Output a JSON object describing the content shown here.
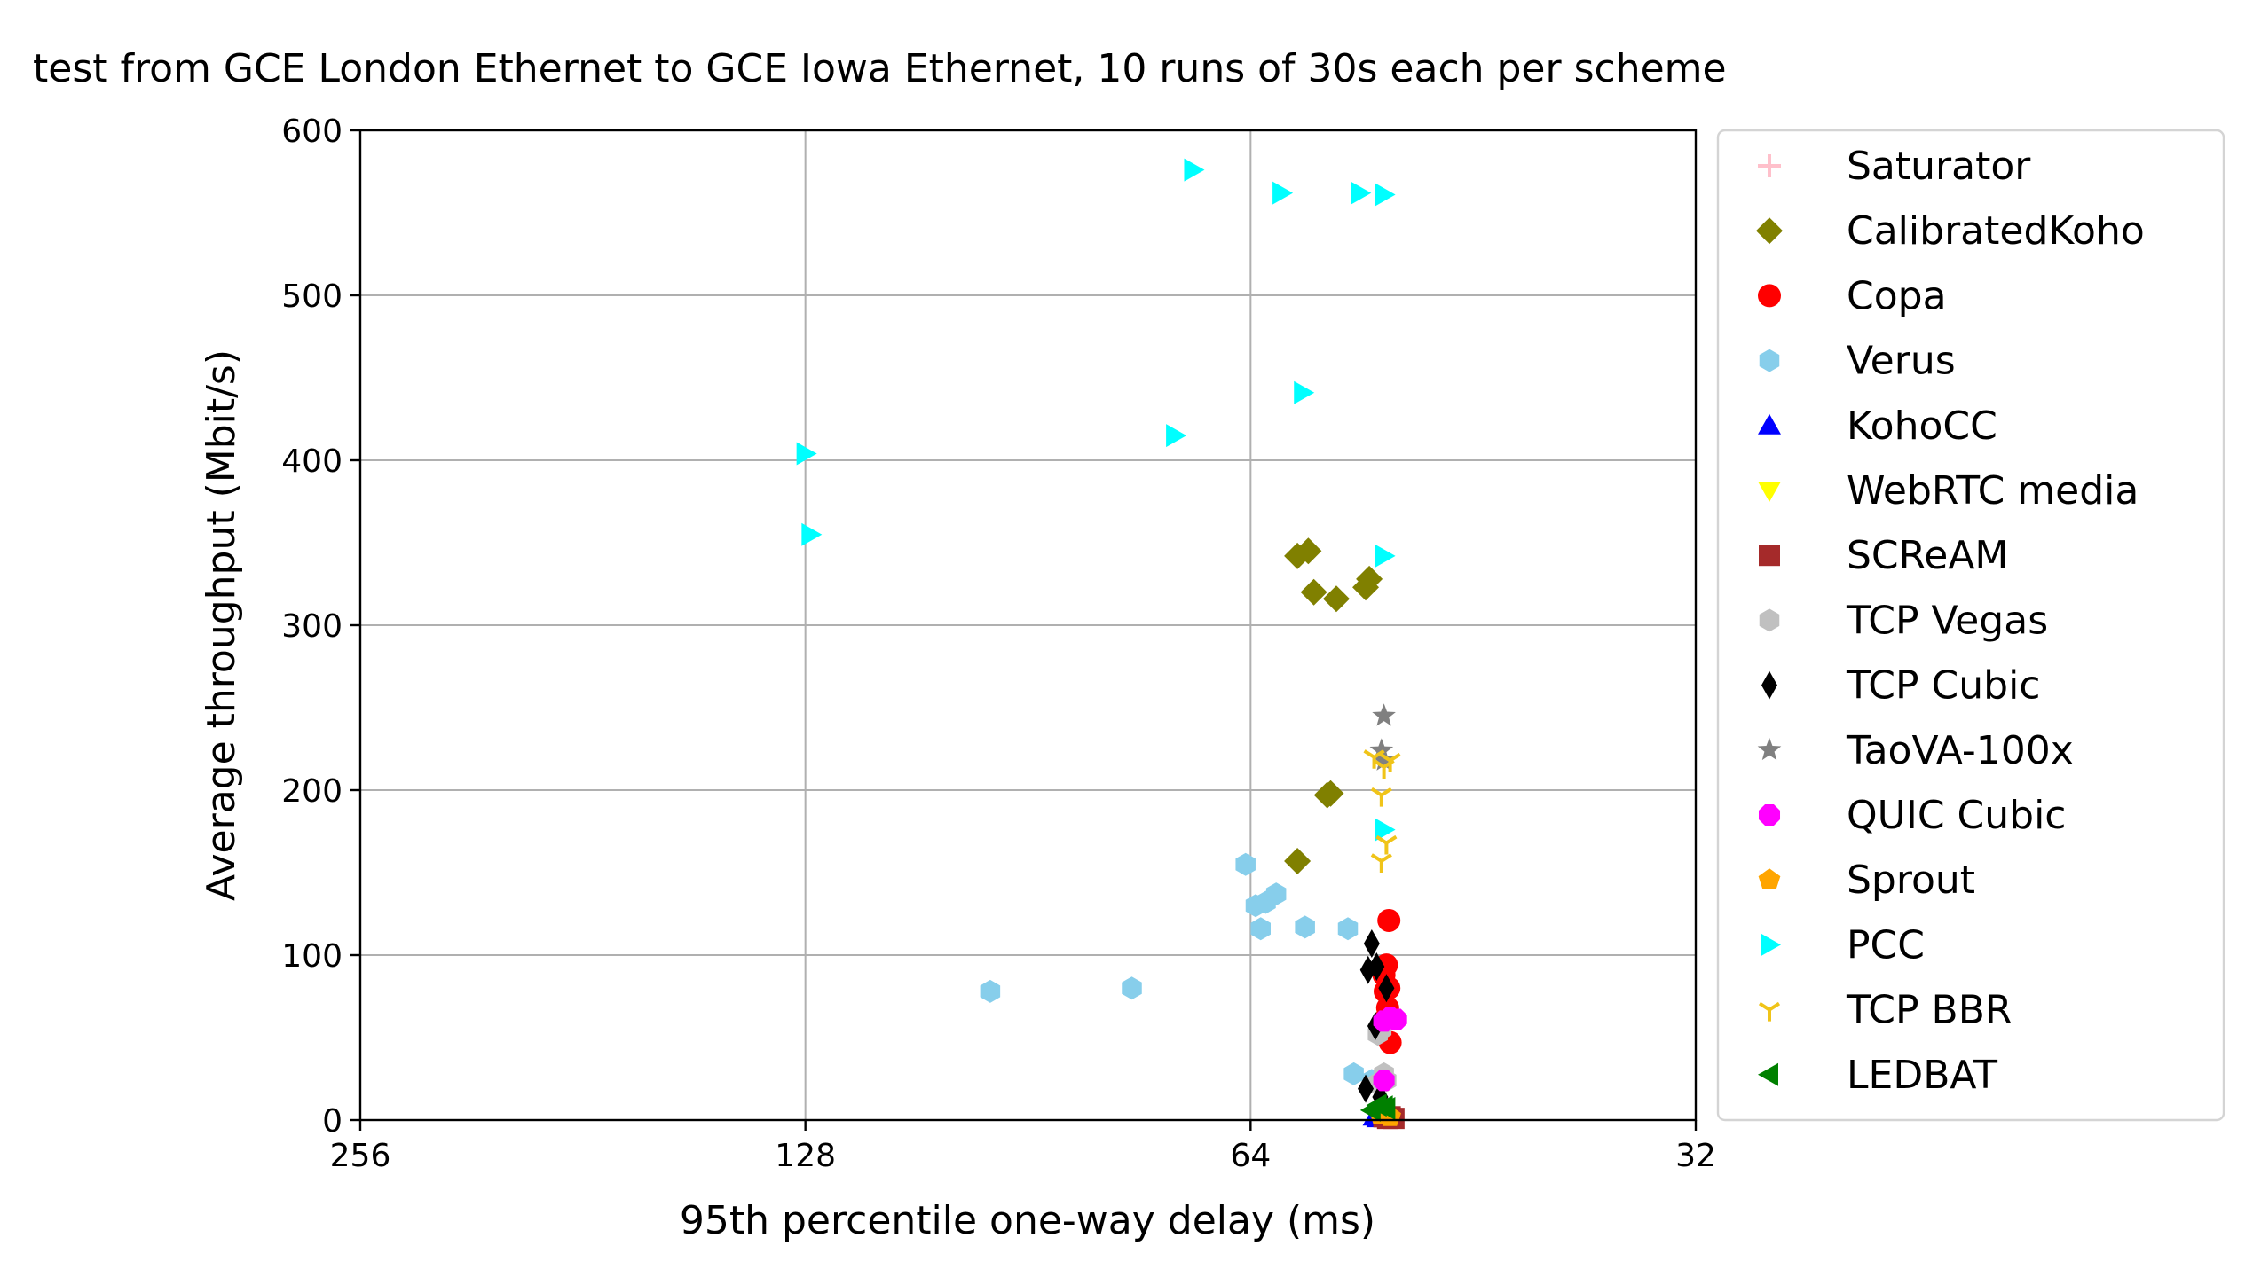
{
  "chart_data": {
    "type": "scatter",
    "title": "test from GCE London Ethernet to GCE Iowa Ethernet, 10 runs of 30s each per scheme",
    "xlabel": "95th percentile one-way delay (ms)",
    "ylabel": "Average throughput (Mbit/s)",
    "xscale": "log2",
    "xaxis_inverted": true,
    "xlim": [
      256,
      32
    ],
    "ylim": [
      0,
      600
    ],
    "xticks": [
      256,
      128,
      64,
      32
    ],
    "xtick_labels": [
      "256",
      "128",
      "64",
      "32"
    ],
    "yticks": [
      0,
      100,
      200,
      300,
      400,
      500,
      600
    ],
    "ytick_labels": [
      "0",
      "100",
      "200",
      "300",
      "400",
      "500",
      "600"
    ],
    "grid": true,
    "legend_position": "outside-right",
    "series": [
      {
        "name": "Saturator",
        "marker": "plus",
        "color": "#ffc0cb",
        "points": []
      },
      {
        "name": "CalibratedKoho",
        "marker": "diamond",
        "color": "#808000",
        "points": [
          [
            59.5,
            342
          ],
          [
            58.5,
            345
          ],
          [
            58,
            320
          ],
          [
            56,
            316
          ],
          [
            53.5,
            323
          ],
          [
            53.2,
            328
          ],
          [
            56.5,
            198
          ],
          [
            56.8,
            197
          ],
          [
            59.5,
            157
          ]
        ]
      },
      {
        "name": "Copa",
        "marker": "circle",
        "color": "#ff0000",
        "points": [
          [
            51.6,
            121
          ],
          [
            51.8,
            94
          ],
          [
            52,
            88
          ],
          [
            51.9,
            78
          ],
          [
            51.6,
            80
          ],
          [
            51.7,
            68
          ],
          [
            51.8,
            62
          ],
          [
            51.5,
            47
          ]
        ]
      },
      {
        "name": "Verus",
        "marker": "hexagon",
        "color": "#87ceeb",
        "points": [
          [
            64.5,
            155
          ],
          [
            63.5,
            130
          ],
          [
            62.5,
            132
          ],
          [
            63,
            116
          ],
          [
            61.5,
            137
          ],
          [
            58.8,
            117
          ],
          [
            55,
            116
          ],
          [
            96,
            78
          ],
          [
            77,
            80
          ],
          [
            54.5,
            28
          ],
          [
            53,
            24
          ]
        ]
      },
      {
        "name": "KohoCC",
        "marker": "triangle-up",
        "color": "#0000ff",
        "points": [
          [
            52.8,
            2
          ],
          [
            52.5,
            1
          ]
        ]
      },
      {
        "name": "WebRTC media",
        "marker": "triangle-down",
        "color": "#ffff00",
        "points": []
      },
      {
        "name": "SCReAM",
        "marker": "square",
        "color": "#a52a2a",
        "points": [
          [
            51.5,
            2
          ],
          [
            51.2,
            1
          ],
          [
            52,
            2
          ],
          [
            51.7,
            1
          ]
        ]
      },
      {
        "name": "TCP Vegas",
        "marker": "hexagon",
        "color": "#c0c0c0",
        "points": [
          [
            52.5,
            52
          ],
          [
            52.2,
            55
          ],
          [
            51.8,
            24
          ],
          [
            52.6,
            22
          ],
          [
            52,
            28
          ]
        ]
      },
      {
        "name": "TCP Cubic",
        "marker": "thin_diamond",
        "color": "#000000",
        "points": [
          [
            53,
            107
          ],
          [
            53.3,
            91
          ],
          [
            52.6,
            93
          ],
          [
            51.8,
            80
          ],
          [
            52.7,
            57
          ],
          [
            53.5,
            19
          ],
          [
            52.3,
            14
          ]
        ]
      },
      {
        "name": "TaoVA-100x",
        "marker": "star",
        "color": "#808080",
        "points": [
          [
            52,
            245
          ],
          [
            52.2,
            224
          ],
          [
            52,
            218
          ]
        ]
      },
      {
        "name": "QUIC Cubic",
        "marker": "octagon",
        "color": "#ff00ff",
        "points": [
          [
            51.5,
            62
          ],
          [
            51,
            61
          ],
          [
            52,
            60
          ],
          [
            52,
            24
          ]
        ]
      },
      {
        "name": "Sprout",
        "marker": "pentagon",
        "color": "#ffa500",
        "points": [
          [
            52.3,
            3
          ],
          [
            51.5,
            2
          ]
        ]
      },
      {
        "name": "PCC",
        "marker": "triangle-right",
        "color": "#00ffff",
        "points": [
          [
            70,
            576
          ],
          [
            61,
            562
          ],
          [
            54,
            562
          ],
          [
            52,
            561
          ],
          [
            59,
            441
          ],
          [
            72,
            415
          ],
          [
            128,
            404
          ],
          [
            127,
            355
          ],
          [
            52,
            342
          ],
          [
            52,
            176
          ]
        ]
      },
      {
        "name": "TCP BBR",
        "marker": "tri-down",
        "color": "#f0c419",
        "points": [
          [
            52.8,
            220
          ],
          [
            52,
            214
          ],
          [
            51.5,
            218
          ],
          [
            52.2,
            197
          ],
          [
            51.8,
            168
          ],
          [
            52.2,
            157
          ]
        ]
      },
      {
        "name": "LEDBAT",
        "marker": "triangle-left",
        "color": "#008000",
        "points": [
          [
            52.5,
            9
          ],
          [
            52,
            8
          ],
          [
            51.8,
            7
          ],
          [
            53,
            6
          ]
        ]
      }
    ]
  }
}
